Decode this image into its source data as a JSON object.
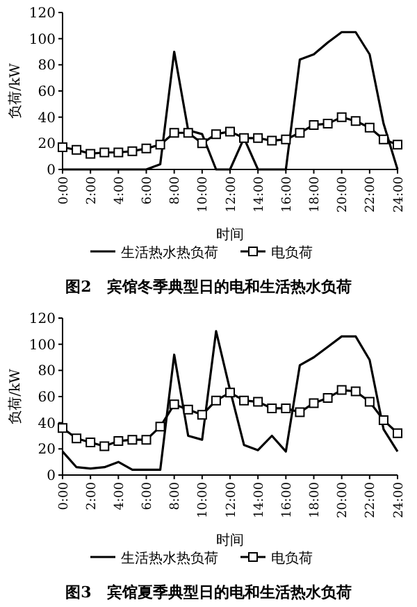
{
  "chart_data": [
    {
      "type": "line",
      "title": "图2　宾馆冬季典型日的电和生活热水负荷",
      "xlabel": "时间",
      "ylabel": "负荷/kW",
      "categories": [
        "0:00",
        null,
        "2:00",
        null,
        "4:00",
        null,
        "6:00",
        null,
        "8:00",
        null,
        "10:00",
        null,
        "12:00",
        null,
        "14:00",
        null,
        "16:00",
        null,
        "18:00",
        null,
        "20:00",
        null,
        "22:00",
        null,
        "24:00"
      ],
      "ylim": [
        0,
        120
      ],
      "yticks": [
        0,
        20,
        40,
        60,
        80,
        100,
        120
      ],
      "legend": "bottom",
      "series": [
        {
          "name": "生活热水热负荷",
          "color": "#000000",
          "marker": "none",
          "values": [
            0,
            0,
            0,
            0,
            0,
            0,
            0,
            4,
            90,
            30,
            27,
            0,
            0,
            24,
            0,
            0,
            0,
            84,
            88,
            97,
            105,
            105,
            88,
            35,
            0
          ]
        },
        {
          "name": "电负荷",
          "color": "#000000",
          "marker": "square",
          "values": [
            17,
            15,
            12,
            13,
            13,
            14,
            16,
            19,
            28,
            28,
            20,
            27,
            29,
            24,
            24,
            22,
            23,
            28,
            34,
            35,
            40,
            37,
            32,
            23,
            19
          ]
        }
      ]
    },
    {
      "type": "line",
      "title": "图3　宾馆夏季典型日的电和生活热水负荷",
      "xlabel": "时间",
      "ylabel": "负荷/kW",
      "categories": [
        "0:00",
        null,
        "2:00",
        null,
        "4:00",
        null,
        "6:00",
        null,
        "8:00",
        null,
        "10:00",
        null,
        "12:00",
        null,
        "14:00",
        null,
        "16:00",
        null,
        "18:00",
        null,
        "20:00",
        null,
        "22:00",
        null,
        "24:00"
      ],
      "ylim": [
        0,
        120
      ],
      "yticks": [
        0,
        20,
        40,
        60,
        80,
        100,
        120
      ],
      "legend": "bottom",
      "series": [
        {
          "name": "生活热水热负荷",
          "color": "#000000",
          "marker": "none",
          "values": [
            18,
            6,
            5,
            6,
            10,
            4,
            4,
            4,
            92,
            30,
            27,
            110,
            65,
            23,
            19,
            30,
            18,
            84,
            90,
            98,
            106,
            106,
            88,
            35,
            18
          ]
        },
        {
          "name": "电负荷",
          "color": "#000000",
          "marker": "square",
          "values": [
            36,
            28,
            25,
            22,
            26,
            27,
            27,
            37,
            54,
            50,
            46,
            57,
            63,
            57,
            56,
            51,
            51,
            48,
            55,
            59,
            65,
            64,
            56,
            42,
            32
          ]
        }
      ]
    }
  ]
}
